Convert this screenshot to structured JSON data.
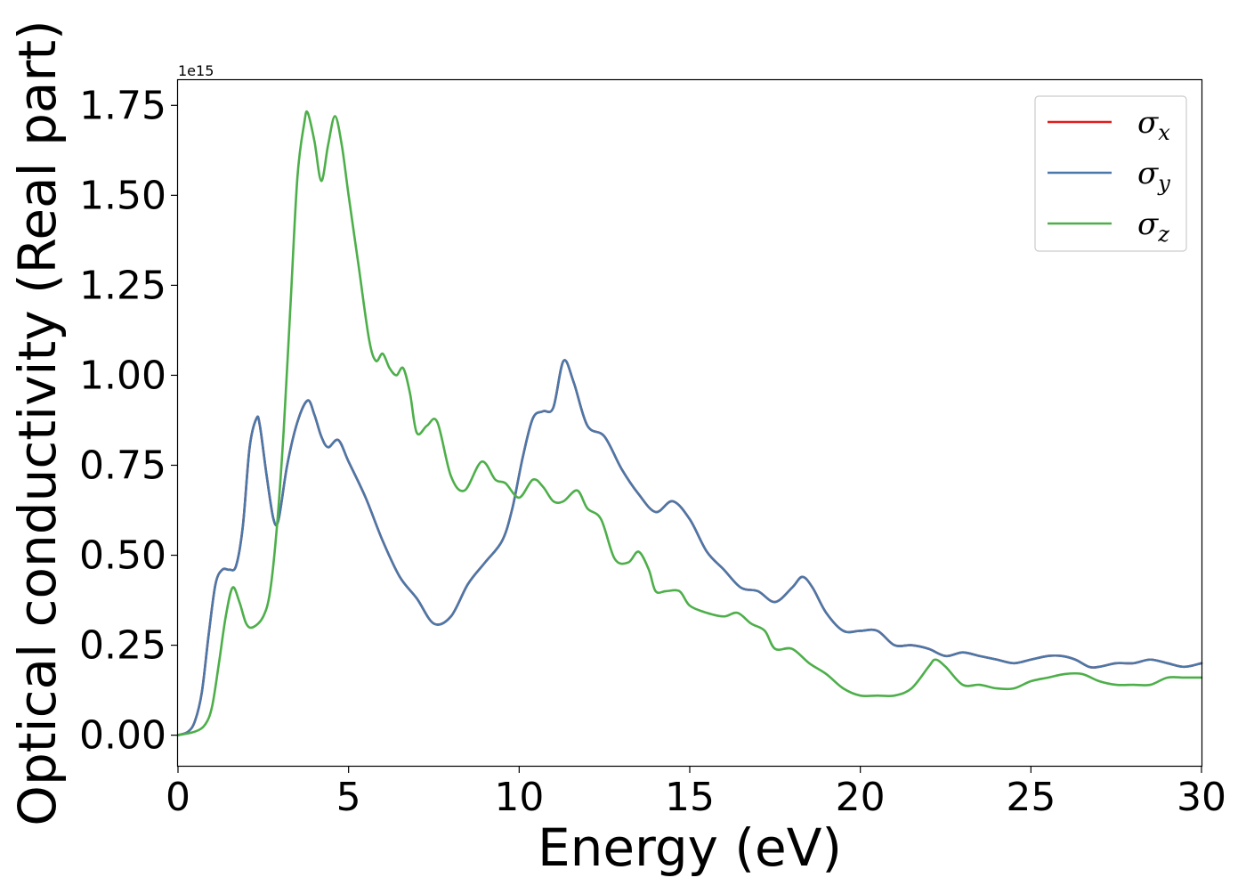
{
  "chart_data": {
    "type": "line",
    "xlabel": "Energy (eV)",
    "ylabel": "Optical conductivity (Real part)",
    "offset_text": "1e15",
    "xlim": [
      0,
      30
    ],
    "ylim": [
      -0.085,
      1.82
    ],
    "x_ticks": [
      0,
      5,
      10,
      15,
      20,
      25,
      30
    ],
    "x_tick_labels": [
      "0",
      "5",
      "10",
      "15",
      "20",
      "25",
      "30"
    ],
    "y_ticks": [
      0.0,
      0.25,
      0.5,
      0.75,
      1.0,
      1.25,
      1.5,
      1.75
    ],
    "y_tick_labels": [
      "0.00",
      "0.25",
      "0.50",
      "0.75",
      "1.00",
      "1.25",
      "1.50",
      "1.75"
    ],
    "grid": false,
    "legend_position": "top-right",
    "series": [
      {
        "name": "σ",
        "subscript": "x",
        "color": "#e41a1c",
        "x": [
          0,
          0.3,
          0.5,
          0.7,
          0.9,
          1.1,
          1.3,
          1.5,
          1.7,
          1.9,
          2.1,
          2.3,
          2.4,
          2.6,
          2.8,
          2.95,
          3.2,
          3.5,
          3.8,
          4.0,
          4.2,
          4.4,
          4.7,
          5.0,
          5.5,
          6.0,
          6.5,
          7.0,
          7.5,
          8.0,
          8.5,
          9.0,
          9.5,
          9.8,
          10.1,
          10.4,
          10.7,
          11.0,
          11.3,
          11.6,
          12.0,
          12.5,
          13.0,
          13.5,
          14.0,
          14.5,
          15.0,
          15.5,
          16.0,
          16.5,
          17.0,
          17.5,
          18.0,
          18.3,
          18.6,
          19.0,
          19.5,
          20.0,
          20.5,
          21.0,
          21.5,
          22.0,
          22.5,
          23.0,
          23.5,
          24.0,
          24.5,
          25.0,
          25.5,
          25.9,
          26.3,
          26.7,
          27.0,
          27.5,
          28.0,
          28.5,
          29.0,
          29.5,
          30.0
        ],
        "values": [
          0.0,
          0.01,
          0.04,
          0.12,
          0.28,
          0.42,
          0.46,
          0.46,
          0.47,
          0.58,
          0.8,
          0.88,
          0.86,
          0.72,
          0.6,
          0.6,
          0.75,
          0.87,
          0.93,
          0.89,
          0.83,
          0.8,
          0.82,
          0.76,
          0.66,
          0.54,
          0.44,
          0.38,
          0.31,
          0.33,
          0.42,
          0.48,
          0.54,
          0.63,
          0.77,
          0.88,
          0.9,
          0.91,
          1.04,
          0.98,
          0.86,
          0.83,
          0.74,
          0.67,
          0.62,
          0.65,
          0.6,
          0.51,
          0.46,
          0.41,
          0.4,
          0.37,
          0.41,
          0.44,
          0.41,
          0.34,
          0.29,
          0.29,
          0.29,
          0.25,
          0.25,
          0.24,
          0.22,
          0.23,
          0.22,
          0.21,
          0.2,
          0.21,
          0.22,
          0.22,
          0.21,
          0.19,
          0.19,
          0.2,
          0.2,
          0.21,
          0.2,
          0.19,
          0.2
        ]
      },
      {
        "name": "σ",
        "subscript": "y",
        "color": "#4a78a8",
        "x": [
          0,
          0.3,
          0.5,
          0.7,
          0.9,
          1.1,
          1.3,
          1.5,
          1.7,
          1.9,
          2.1,
          2.3,
          2.4,
          2.6,
          2.8,
          2.95,
          3.2,
          3.5,
          3.8,
          4.0,
          4.2,
          4.4,
          4.7,
          5.0,
          5.5,
          6.0,
          6.5,
          7.0,
          7.5,
          8.0,
          8.5,
          9.0,
          9.5,
          9.8,
          10.1,
          10.4,
          10.7,
          11.0,
          11.3,
          11.6,
          12.0,
          12.5,
          13.0,
          13.5,
          14.0,
          14.5,
          15.0,
          15.5,
          16.0,
          16.5,
          17.0,
          17.5,
          18.0,
          18.3,
          18.6,
          19.0,
          19.5,
          20.0,
          20.5,
          21.0,
          21.5,
          22.0,
          22.5,
          23.0,
          23.5,
          24.0,
          24.5,
          25.0,
          25.5,
          25.9,
          26.3,
          26.7,
          27.0,
          27.5,
          28.0,
          28.5,
          29.0,
          29.5,
          30.0
        ],
        "values": [
          0.0,
          0.01,
          0.04,
          0.12,
          0.28,
          0.42,
          0.46,
          0.46,
          0.47,
          0.58,
          0.8,
          0.88,
          0.86,
          0.72,
          0.6,
          0.6,
          0.75,
          0.87,
          0.93,
          0.89,
          0.83,
          0.8,
          0.82,
          0.76,
          0.66,
          0.54,
          0.44,
          0.38,
          0.31,
          0.33,
          0.42,
          0.48,
          0.54,
          0.63,
          0.77,
          0.88,
          0.9,
          0.91,
          1.04,
          0.98,
          0.86,
          0.83,
          0.74,
          0.67,
          0.62,
          0.65,
          0.6,
          0.51,
          0.46,
          0.41,
          0.4,
          0.37,
          0.41,
          0.44,
          0.41,
          0.34,
          0.29,
          0.29,
          0.29,
          0.25,
          0.25,
          0.24,
          0.22,
          0.23,
          0.22,
          0.21,
          0.2,
          0.21,
          0.22,
          0.22,
          0.21,
          0.19,
          0.19,
          0.2,
          0.2,
          0.21,
          0.2,
          0.19,
          0.2
        ]
      },
      {
        "name": "σ",
        "subscript": "z",
        "color": "#4daf4a",
        "x": [
          0,
          0.5,
          0.8,
          1.0,
          1.2,
          1.4,
          1.6,
          1.8,
          2.0,
          2.2,
          2.5,
          2.7,
          2.9,
          3.1,
          3.3,
          3.5,
          3.7,
          3.8,
          4.0,
          4.2,
          4.4,
          4.6,
          4.8,
          5.0,
          5.3,
          5.6,
          5.8,
          6.0,
          6.2,
          6.4,
          6.6,
          6.8,
          7.0,
          7.3,
          7.6,
          8.0,
          8.4,
          8.9,
          9.3,
          9.6,
          10.0,
          10.4,
          10.7,
          11.0,
          11.3,
          11.7,
          12.0,
          12.4,
          12.8,
          13.2,
          13.5,
          13.8,
          14.0,
          14.3,
          14.7,
          15.0,
          15.5,
          16.0,
          16.4,
          16.8,
          17.2,
          17.5,
          18.0,
          18.5,
          19.0,
          19.5,
          20.0,
          20.5,
          21.0,
          21.5,
          22.0,
          22.2,
          22.5,
          23.0,
          23.5,
          24.0,
          24.5,
          25.0,
          25.5,
          26.0,
          26.5,
          27.0,
          27.5,
          28.0,
          28.5,
          29.0,
          29.5,
          30.0
        ],
        "values": [
          0.0,
          0.01,
          0.03,
          0.08,
          0.2,
          0.33,
          0.41,
          0.37,
          0.31,
          0.3,
          0.33,
          0.4,
          0.58,
          0.85,
          1.2,
          1.55,
          1.7,
          1.73,
          1.65,
          1.54,
          1.64,
          1.72,
          1.64,
          1.5,
          1.3,
          1.1,
          1.04,
          1.06,
          1.02,
          1.0,
          1.02,
          0.95,
          0.84,
          0.86,
          0.87,
          0.72,
          0.68,
          0.76,
          0.71,
          0.7,
          0.66,
          0.71,
          0.69,
          0.65,
          0.65,
          0.68,
          0.63,
          0.6,
          0.49,
          0.48,
          0.51,
          0.46,
          0.4,
          0.4,
          0.4,
          0.36,
          0.34,
          0.33,
          0.34,
          0.31,
          0.29,
          0.24,
          0.24,
          0.2,
          0.17,
          0.13,
          0.11,
          0.11,
          0.11,
          0.13,
          0.19,
          0.21,
          0.19,
          0.14,
          0.14,
          0.13,
          0.13,
          0.15,
          0.16,
          0.17,
          0.17,
          0.15,
          0.14,
          0.14,
          0.14,
          0.16,
          0.16,
          0.16
        ]
      }
    ]
  }
}
